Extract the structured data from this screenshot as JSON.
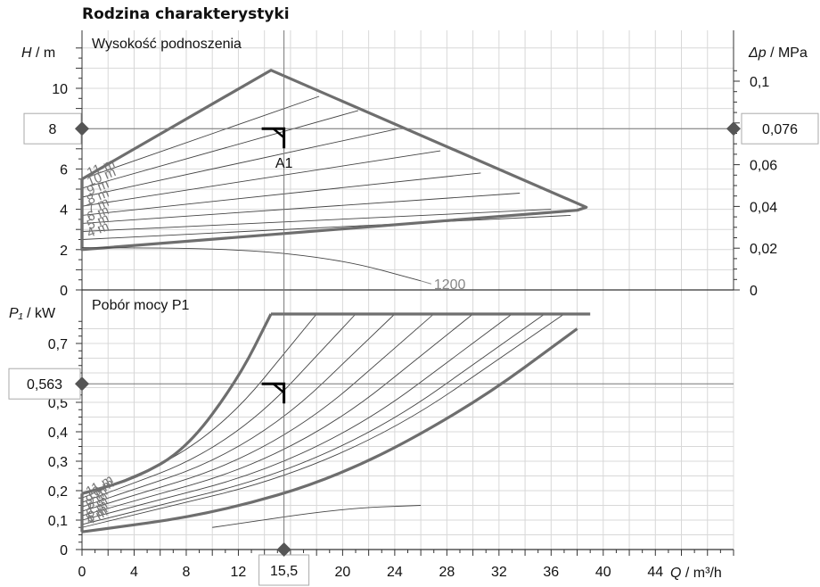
{
  "title": "Rodzina charakterystyki",
  "chart_data": [
    {
      "type": "line",
      "title": "Wysokość podnoszenia",
      "ylabel_italic": "H",
      "ylabel_unit": "/ m",
      "y2label_italic": "Δp",
      "y2label_unit": "/ MPa",
      "ylim": [
        0,
        12
      ],
      "y_ticks": [
        "0",
        "2",
        "4",
        "6",
        "8",
        "10"
      ],
      "y_tick_values": [
        0,
        2,
        4,
        6,
        8,
        10
      ],
      "y2_ticks": [
        "0",
        "0,02",
        "0,04",
        "0,06",
        "0,1"
      ],
      "y2_tick_values": [
        0,
        0.02,
        0.04,
        0.06,
        0.1
      ],
      "grid": true,
      "envelope": [
        [
          0,
          5.5
        ],
        [
          14.5,
          10.9
        ],
        [
          38.7,
          4.1
        ],
        [
          38,
          3.95
        ],
        [
          0,
          2.0
        ]
      ],
      "speed_curves": [
        {
          "name": "11 m",
          "points": [
            [
              0,
              5.5
            ],
            [
              18.2,
              9.6
            ]
          ]
        },
        {
          "name": "10 m",
          "points": [
            [
              0,
              5.05
            ],
            [
              21.2,
              8.9
            ]
          ]
        },
        {
          "name": "9 m",
          "points": [
            [
              0,
              4.6
            ],
            [
              24.3,
              8.0
            ]
          ]
        },
        {
          "name": "8 m",
          "points": [
            [
              0,
              4.15
            ],
            [
              27.5,
              6.9
            ]
          ]
        },
        {
          "name": "7 m",
          "points": [
            [
              0,
              3.7
            ],
            [
              30.6,
              5.8
            ]
          ]
        },
        {
          "name": "6 m",
          "points": [
            [
              0,
              3.3
            ],
            [
              33.6,
              4.8
            ]
          ]
        },
        {
          "name": "5 m",
          "points": [
            [
              0,
              2.9
            ],
            [
              36.0,
              4.0
            ]
          ]
        },
        {
          "name": "4 m",
          "points": [
            [
              0,
              2.5
            ],
            [
              37.5,
              3.7
            ]
          ]
        }
      ],
      "system_curve": {
        "label": "1200",
        "points": [
          [
            0,
            2.1
          ],
          [
            12,
            2.05
          ],
          [
            20,
            1.5
          ],
          [
            26,
            0.45
          ]
        ]
      },
      "operating_point": {
        "label": "A1",
        "x": 15.5,
        "y": 8
      },
      "readout_y": "8",
      "readout_y2": "0,076"
    },
    {
      "type": "line",
      "title": "Pobór mocy P1",
      "ylabel_italic": "P₁",
      "ylabel_unit": "/ kW",
      "ylim": [
        0,
        0.8
      ],
      "y_ticks": [
        "0",
        "0,1",
        "0,2",
        "0,3",
        "0,4",
        "0,5",
        "0,7"
      ],
      "y_tick_values": [
        0,
        0.1,
        0.2,
        0.3,
        0.4,
        0.5,
        0.7
      ],
      "grid": true,
      "max_power": 0.8,
      "envelope_upper": [
        [
          0,
          0.19
        ],
        [
          4,
          0.24
        ],
        [
          8,
          0.34
        ],
        [
          12,
          0.58
        ],
        [
          14.5,
          0.8
        ],
        [
          39,
          0.8
        ]
      ],
      "envelope_lower": [
        [
          0,
          0.06
        ],
        [
          10,
          0.12
        ],
        [
          20,
          0.25
        ],
        [
          30,
          0.49
        ],
        [
          38,
          0.75
        ]
      ],
      "speed_curves": [
        {
          "name": "11 m",
          "points": [
            [
              0,
              0.175
            ],
            [
              18,
              0.8
            ]
          ]
        },
        {
          "name": "10 m",
          "points": [
            [
              0,
              0.16
            ],
            [
              21,
              0.8
            ]
          ]
        },
        {
          "name": "9 m",
          "points": [
            [
              0,
              0.145
            ],
            [
              24,
              0.8
            ]
          ]
        },
        {
          "name": "8 m",
          "points": [
            [
              0,
              0.13
            ],
            [
              27,
              0.8
            ]
          ]
        },
        {
          "name": "7 m",
          "points": [
            [
              0,
              0.115
            ],
            [
              30,
              0.8
            ]
          ]
        },
        {
          "name": "6 m",
          "points": [
            [
              0,
              0.1
            ],
            [
              33,
              0.8
            ]
          ]
        },
        {
          "name": "5 m",
          "points": [
            [
              0,
              0.085
            ],
            [
              35.5,
              0.8
            ]
          ]
        },
        {
          "name": "4 m",
          "points": [
            [
              0,
              0.075
            ],
            [
              37,
              0.8
            ]
          ]
        }
      ],
      "system_curve": {
        "points": [
          [
            10,
            0.075
          ],
          [
            20,
            0.14
          ],
          [
            26,
            0.15
          ]
        ]
      },
      "operating_point": {
        "x": 15.5,
        "y": 0.563
      },
      "readout_y": "0,563"
    }
  ],
  "x_axis": {
    "label_italic": "Q",
    "label_unit": "/ m³/h",
    "xlim": [
      0,
      50
    ],
    "ticks": [
      "0",
      "4",
      "8",
      "12",
      "20",
      "24",
      "28",
      "32",
      "36",
      "40",
      "44"
    ],
    "tick_values": [
      0,
      4,
      8,
      12,
      20,
      24,
      28,
      32,
      36,
      40,
      44
    ],
    "readout_x": "15,5"
  },
  "colors": {
    "envelope": "#6e6e6e",
    "curve": "#444444",
    "grid": "#d8d8d8",
    "marker": "#555555",
    "readout_line": "#777777"
  }
}
